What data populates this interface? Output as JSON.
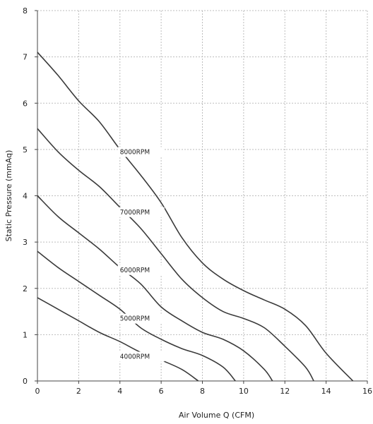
{
  "chart_data": {
    "type": "line",
    "title": "",
    "xlabel": "Air Volume Q (CFM)",
    "ylabel": "Static Pressure (mmAq)",
    "xlim": [
      0,
      16
    ],
    "ylim": [
      0,
      8
    ],
    "x_ticks": [
      0,
      2,
      4,
      6,
      8,
      10,
      12,
      14,
      16
    ],
    "y_ticks": [
      0,
      1,
      2,
      3,
      4,
      5,
      6,
      7,
      8
    ],
    "grid": true,
    "legend": "none",
    "line_color": "#3a3a3a",
    "series": [
      {
        "name": "8000RPM",
        "label_at": [
          4.0,
          4.9
        ],
        "points": [
          [
            0,
            7.1
          ],
          [
            1,
            6.6
          ],
          [
            2,
            6.05
          ],
          [
            3,
            5.6
          ],
          [
            4,
            5.0
          ],
          [
            5,
            4.45
          ],
          [
            6,
            3.85
          ],
          [
            7,
            3.1
          ],
          [
            8,
            2.55
          ],
          [
            9,
            2.2
          ],
          [
            10,
            1.95
          ],
          [
            11,
            1.75
          ],
          [
            12,
            1.55
          ],
          [
            13,
            1.2
          ],
          [
            14,
            0.6
          ],
          [
            15.3,
            0
          ]
        ]
      },
      {
        "name": "7000RPM",
        "label_at": [
          4.0,
          3.6
        ],
        "points": [
          [
            0,
            5.45
          ],
          [
            1,
            4.95
          ],
          [
            2,
            4.55
          ],
          [
            3,
            4.2
          ],
          [
            4,
            3.75
          ],
          [
            5,
            3.3
          ],
          [
            6,
            2.75
          ],
          [
            7,
            2.2
          ],
          [
            8,
            1.8
          ],
          [
            9,
            1.5
          ],
          [
            10,
            1.35
          ],
          [
            11,
            1.15
          ],
          [
            12,
            0.75
          ],
          [
            13,
            0.3
          ],
          [
            13.4,
            0
          ]
        ]
      },
      {
        "name": "6000RPM",
        "label_at": [
          4.0,
          2.35
        ],
        "points": [
          [
            0,
            4.0
          ],
          [
            1,
            3.55
          ],
          [
            2,
            3.2
          ],
          [
            3,
            2.85
          ],
          [
            4,
            2.45
          ],
          [
            5,
            2.1
          ],
          [
            6,
            1.6
          ],
          [
            7,
            1.3
          ],
          [
            8,
            1.05
          ],
          [
            9,
            0.9
          ],
          [
            10,
            0.65
          ],
          [
            11,
            0.25
          ],
          [
            11.4,
            0
          ]
        ]
      },
      {
        "name": "5000RPM",
        "label_at": [
          4.0,
          1.3
        ],
        "points": [
          [
            0,
            2.8
          ],
          [
            1,
            2.45
          ],
          [
            2,
            2.15
          ],
          [
            3,
            1.85
          ],
          [
            4,
            1.55
          ],
          [
            5,
            1.15
          ],
          [
            6,
            0.9
          ],
          [
            7,
            0.7
          ],
          [
            8,
            0.55
          ],
          [
            9,
            0.3
          ],
          [
            9.6,
            0
          ]
        ]
      },
      {
        "name": "4000RPM",
        "label_at": [
          4.0,
          0.48
        ],
        "points": [
          [
            0,
            1.8
          ],
          [
            1,
            1.55
          ],
          [
            2,
            1.3
          ],
          [
            3,
            1.05
          ],
          [
            4,
            0.85
          ],
          [
            5,
            0.62
          ],
          [
            6,
            0.45
          ],
          [
            7,
            0.25
          ],
          [
            7.8,
            0
          ]
        ]
      }
    ]
  }
}
